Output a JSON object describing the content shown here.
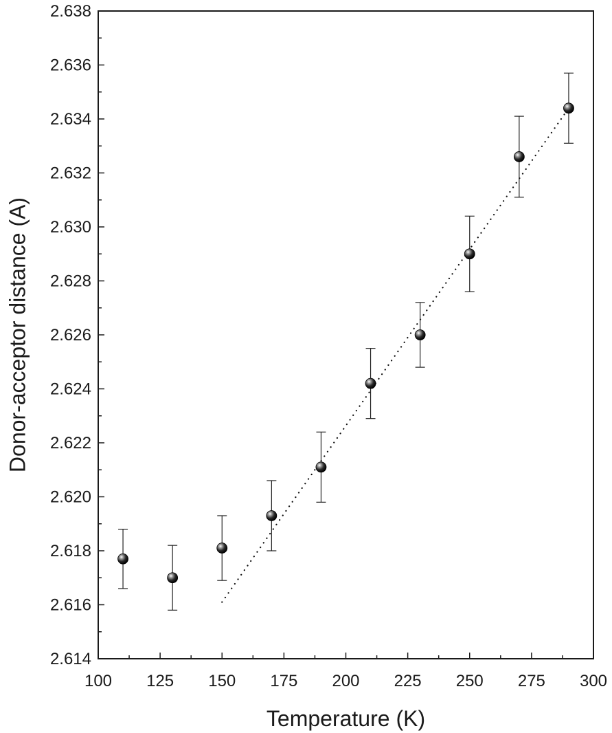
{
  "chart_data": {
    "type": "scatter",
    "title": "",
    "xlabel": "Temperature (K)",
    "ylabel": "Donor-acceptor distance (A)",
    "xlim": [
      100,
      300
    ],
    "ylim": [
      2.614,
      2.638
    ],
    "x_ticks": [
      100,
      125,
      150,
      175,
      200,
      225,
      250,
      275,
      300
    ],
    "x_tick_labels": [
      "100",
      "125",
      "150",
      "175",
      "200",
      "225",
      "250",
      "275",
      "300"
    ],
    "y_ticks": [
      2.614,
      2.616,
      2.618,
      2.62,
      2.622,
      2.624,
      2.626,
      2.628,
      2.63,
      2.632,
      2.634,
      2.636,
      2.638
    ],
    "y_tick_labels": [
      "2.614",
      "2.616",
      "2.618",
      "2.620",
      "2.622",
      "2.624",
      "2.626",
      "2.628",
      "2.630",
      "2.632",
      "2.634",
      "2.636",
      "2.638"
    ],
    "grid": false,
    "legend": "none",
    "series": [
      {
        "x": [
          110,
          130,
          150,
          170,
          190,
          210,
          230,
          250,
          270,
          290
        ],
        "y": [
          2.6177,
          2.617,
          2.6181,
          2.6193,
          2.6211,
          2.6242,
          2.626,
          2.629,
          2.6326,
          2.6344
        ],
        "error": [
          0.0011,
          0.0012,
          0.0012,
          0.0013,
          0.0013,
          0.0013,
          0.0012,
          0.0014,
          0.0015,
          0.0013
        ],
        "marker": "sphere",
        "color": "#111111"
      }
    ],
    "fit_line": {
      "style": "dotted",
      "x": [
        150,
        290
      ],
      "y": [
        2.6161,
        2.6344
      ]
    }
  }
}
